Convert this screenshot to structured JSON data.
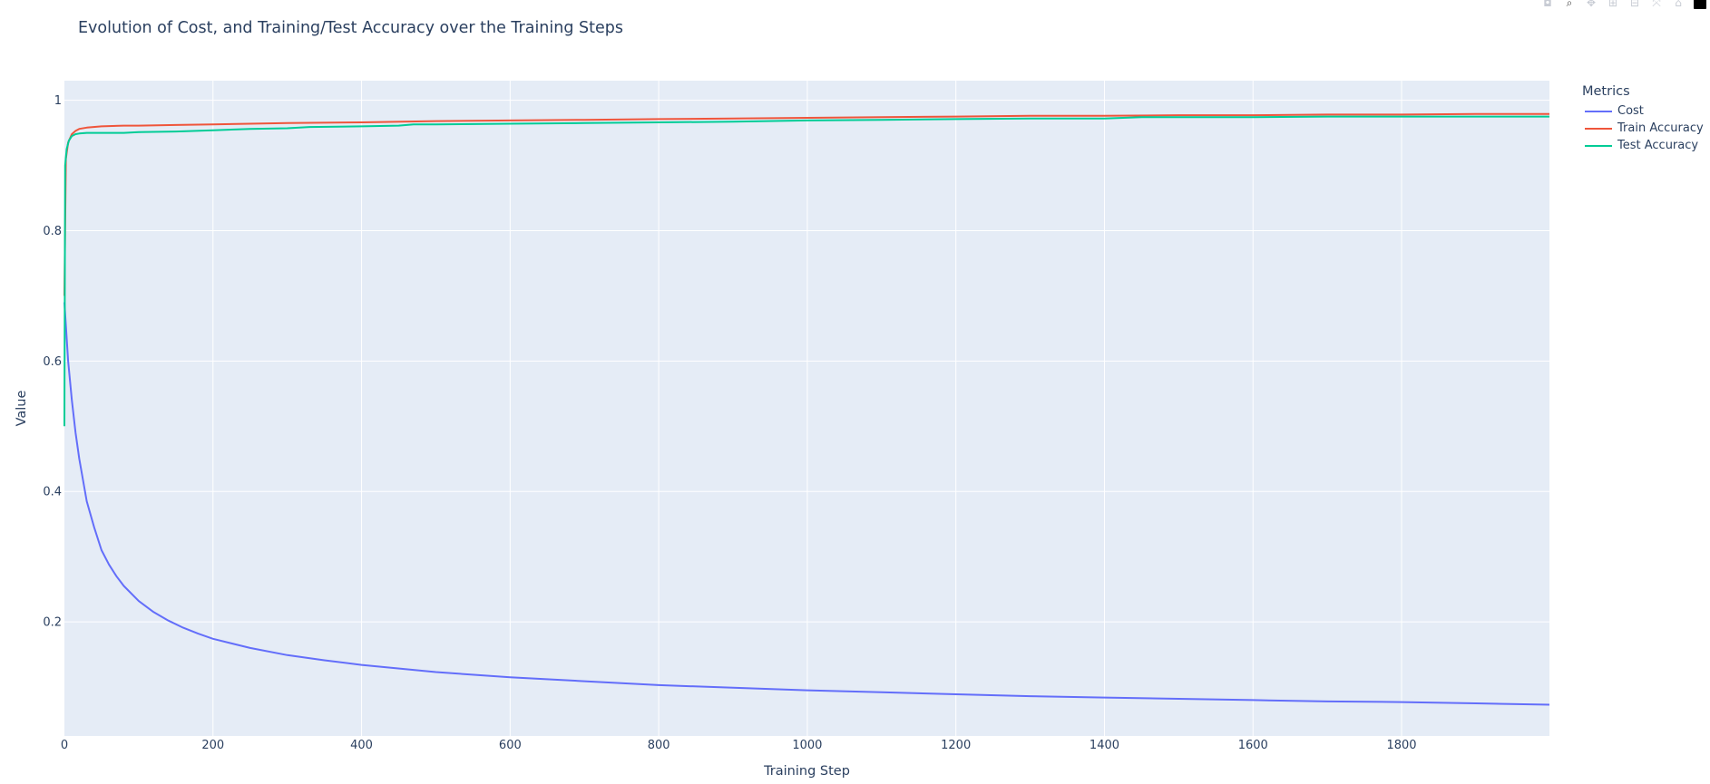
{
  "chart_data": {
    "type": "line",
    "title": "Evolution of Cost, and Training/Test Accuracy over the Training Steps",
    "xlabel": "Training Step",
    "ylabel": "Value",
    "xlim": [
      0,
      1999
    ],
    "ylim": [
      0.025,
      1.03
    ],
    "x_ticks": [
      0,
      200,
      400,
      600,
      800,
      1000,
      1200,
      1400,
      1600,
      1800
    ],
    "y_ticks": [
      0.2,
      0.4,
      0.6,
      0.8,
      1
    ],
    "grid": true,
    "legend_title": "Metrics",
    "legend_position": "right",
    "series": [
      {
        "name": "Cost",
        "color": "#636efa",
        "x": [
          0,
          5,
          10,
          15,
          20,
          30,
          40,
          50,
          60,
          70,
          80,
          100,
          120,
          140,
          160,
          180,
          200,
          250,
          300,
          350,
          400,
          500,
          600,
          700,
          800,
          900,
          1000,
          1100,
          1200,
          1300,
          1400,
          1500,
          1600,
          1700,
          1800,
          1900,
          1999
        ],
        "y": [
          0.69,
          0.6,
          0.54,
          0.49,
          0.45,
          0.385,
          0.345,
          0.31,
          0.288,
          0.27,
          0.255,
          0.232,
          0.215,
          0.202,
          0.191,
          0.182,
          0.174,
          0.16,
          0.149,
          0.141,
          0.134,
          0.123,
          0.115,
          0.109,
          0.103,
          0.099,
          0.095,
          0.092,
          0.089,
          0.086,
          0.084,
          0.082,
          0.08,
          0.078,
          0.077,
          0.075,
          0.073
        ]
      },
      {
        "name": "Train Accuracy",
        "color": "#ef553b",
        "x": [
          0,
          2,
          5,
          10,
          15,
          20,
          30,
          50,
          80,
          100,
          150,
          200,
          250,
          300,
          400,
          500,
          600,
          700,
          800,
          900,
          1000,
          1100,
          1200,
          1300,
          1400,
          1500,
          1600,
          1700,
          1800,
          1900,
          1999
        ],
        "y": [
          0.7,
          0.91,
          0.935,
          0.948,
          0.953,
          0.956,
          0.958,
          0.96,
          0.961,
          0.961,
          0.962,
          0.963,
          0.964,
          0.965,
          0.966,
          0.968,
          0.969,
          0.97,
          0.971,
          0.972,
          0.973,
          0.974,
          0.975,
          0.976,
          0.976,
          0.977,
          0.977,
          0.978,
          0.978,
          0.979,
          0.979
        ]
      },
      {
        "name": "Test Accuracy",
        "color": "#00cc96",
        "x": [
          0,
          1,
          3,
          6,
          10,
          15,
          20,
          30,
          40,
          60,
          80,
          100,
          150,
          200,
          250,
          300,
          330,
          400,
          450,
          470,
          500,
          600,
          700,
          800,
          900,
          1000,
          1100,
          1200,
          1300,
          1400,
          1450,
          1500,
          1600,
          1700,
          1800,
          1900,
          1999
        ],
        "y": [
          0.5,
          0.9,
          0.925,
          0.938,
          0.945,
          0.948,
          0.949,
          0.95,
          0.95,
          0.95,
          0.95,
          0.951,
          0.952,
          0.954,
          0.956,
          0.957,
          0.959,
          0.96,
          0.961,
          0.963,
          0.963,
          0.964,
          0.965,
          0.966,
          0.967,
          0.969,
          0.97,
          0.971,
          0.972,
          0.972,
          0.974,
          0.974,
          0.974,
          0.975,
          0.975,
          0.975,
          0.975
        ]
      }
    ]
  },
  "modebar": {
    "buttons": [
      {
        "name": "camera-icon",
        "glyph": "◘"
      },
      {
        "name": "zoom-icon",
        "glyph": "⌕",
        "active": true
      },
      {
        "name": "pan-icon",
        "glyph": "✥"
      },
      {
        "name": "zoom-in-icon",
        "glyph": "⊞"
      },
      {
        "name": "zoom-out-icon",
        "glyph": "⊟"
      },
      {
        "name": "autoscale-icon",
        "glyph": "⤧"
      },
      {
        "name": "home-icon",
        "glyph": "⌂"
      }
    ],
    "logo": "plotly-logo-icon"
  }
}
